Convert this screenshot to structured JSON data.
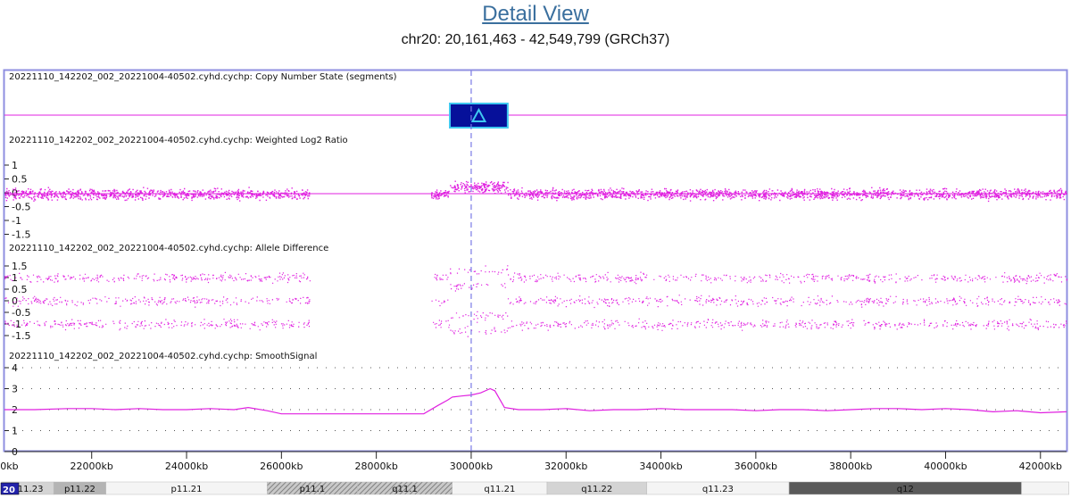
{
  "header": {
    "title": "Detail View",
    "region": "chr20: 20,161,463 - 42,549,799 (GRCh37)"
  },
  "tracks": [
    {
      "id": "cn",
      "label": "20221110_142202_002_20221004-40502.cyhd.cychp: Copy Number State (segments)",
      "axis": []
    },
    {
      "id": "log2",
      "label": "20221110_142202_002_20221004-40502.cyhd.cychp: Weighted Log2 Ratio",
      "axis": [
        "1",
        "0.5",
        "0",
        "-0.5",
        "-1",
        "-1.5"
      ]
    },
    {
      "id": "ad",
      "label": "20221110_142202_002_20221004-40502.cyhd.cychp: Allele Difference",
      "axis": [
        "1.5",
        "1",
        "0.5",
        "0",
        "-0.5",
        "-1",
        "-1.5"
      ]
    },
    {
      "id": "smooth",
      "label": "20221110_142202_002_20221004-40502.cyhd.cychp: SmoothSignal",
      "axis": [
        "4",
        "3",
        "2",
        "1",
        "0"
      ]
    }
  ],
  "x_axis": {
    "start_kb": 20161.463,
    "end_kb": 42549.799,
    "cursor_kb": 30000,
    "ticks": [
      "20000kb",
      "22000kb",
      "24000kb",
      "26000kb",
      "28000kb",
      "30000kb",
      "32000kb",
      "34000kb",
      "36000kb",
      "38000kb",
      "40000kb",
      "42000kb"
    ],
    "tick_values_kb": [
      20000,
      22000,
      24000,
      26000,
      28000,
      30000,
      32000,
      34000,
      36000,
      38000,
      40000,
      42000
    ]
  },
  "segment": {
    "start_kb": 29550,
    "end_kb": 30770,
    "state": "gain",
    "icon": "triangle-up-icon"
  },
  "chromosome_label": "20",
  "bands": [
    {
      "label": "p11.23",
      "start_kb": 20100,
      "end_kb": 21200,
      "stain": "light"
    },
    {
      "label": "p11.22",
      "start_kb": 21200,
      "end_kb": 22300,
      "stain": "mid"
    },
    {
      "label": "p11.21",
      "start_kb": 22300,
      "end_kb": 25700,
      "stain": "white"
    },
    {
      "label": "p11.1",
      "start_kb": 25700,
      "end_kb": 27600,
      "stain": "cen"
    },
    {
      "label": "q11.1",
      "start_kb": 27600,
      "end_kb": 29600,
      "stain": "cen"
    },
    {
      "label": "q11.21",
      "start_kb": 29600,
      "end_kb": 31600,
      "stain": "white"
    },
    {
      "label": "q11.22",
      "start_kb": 31600,
      "end_kb": 33700,
      "stain": "light"
    },
    {
      "label": "q11.23",
      "start_kb": 33700,
      "end_kb": 36700,
      "stain": "white"
    },
    {
      "label": "q12",
      "start_kb": 36700,
      "end_kb": 41600,
      "stain": "dark"
    },
    {
      "label": "",
      "start_kb": 41600,
      "end_kb": 42600,
      "stain": "white"
    }
  ],
  "smooth_signal": {
    "x_kb": [
      20161,
      20800,
      21500,
      22000,
      22500,
      23000,
      23500,
      24000,
      24500,
      25000,
      25300,
      25700,
      26000,
      26500,
      27000,
      27500,
      28000,
      28500,
      29000,
      29300,
      29500,
      29600,
      29800,
      30000,
      30200,
      30400,
      30500,
      30700,
      31000,
      31500,
      32000,
      32500,
      33000,
      33500,
      34000,
      34500,
      35000,
      35500,
      36000,
      36500,
      37000,
      37500,
      38000,
      38500,
      39000,
      39500,
      40000,
      40500,
      41000,
      41500,
      42000,
      42549
    ],
    "y": [
      2.0,
      2.0,
      2.05,
      2.05,
      2.0,
      2.05,
      2.0,
      2.0,
      2.05,
      2.0,
      2.1,
      1.95,
      1.8,
      1.8,
      1.8,
      1.8,
      1.8,
      1.8,
      1.8,
      2.2,
      2.45,
      2.6,
      2.65,
      2.7,
      2.8,
      3.0,
      2.9,
      2.1,
      2.0,
      2.0,
      2.05,
      1.95,
      2.0,
      2.0,
      2.05,
      2.0,
      2.0,
      2.0,
      1.95,
      2.0,
      2.0,
      1.95,
      2.0,
      2.05,
      2.05,
      2.0,
      2.05,
      2.0,
      1.9,
      1.95,
      1.85,
      1.9
    ]
  },
  "colors": {
    "data": "#e020e0",
    "border": "#8f8fe0",
    "cursor": "#7a7ae6",
    "segment_fill": "#06109a",
    "segment_border": "#3ec7f0",
    "title": "#3a6f9e"
  }
}
